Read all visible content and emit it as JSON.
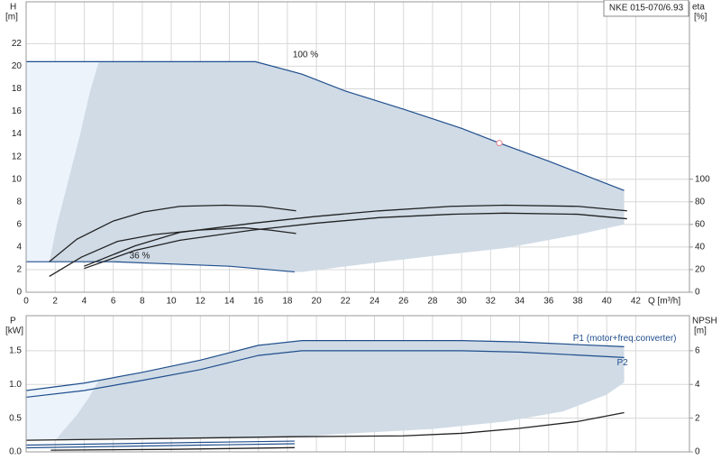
{
  "chart_data": [
    {
      "type": "line",
      "title": "NKE 015-070/6.93",
      "ylabel": "H",
      "yunit": "[m]",
      "y2label": "eta",
      "y2unit": "[%]",
      "xlabel": "Q [m³/h]",
      "xlim": [
        0,
        45.7
      ],
      "xticks": [
        0,
        2,
        4,
        6,
        8,
        10,
        12,
        14,
        16,
        18,
        20,
        22,
        24,
        26,
        28,
        30,
        32,
        34,
        36,
        38,
        40,
        42
      ],
      "ylim": [
        0,
        25.7
      ],
      "yticks": [
        0,
        2,
        4,
        6,
        8,
        10,
        12,
        14,
        16,
        18,
        20,
        22
      ],
      "y2lim": [
        0,
        257
      ],
      "y2ticks": [
        0,
        20,
        40,
        60,
        80,
        100
      ],
      "grid": true,
      "regions": [
        {
          "color": "#d0dbe6",
          "x": [
            5,
            15.8,
            19,
            22,
            26,
            30,
            32.6,
            36,
            41.2,
            41.2,
            38,
            33,
            28,
            24,
            19,
            18.5,
            14,
            10,
            6,
            1.6,
            2.1,
            2.9,
            3.7,
            4.4
          ],
          "values": [
            20.4,
            20.4,
            19.3,
            17.8,
            16.2,
            14.5,
            13.2,
            11.6,
            9,
            6,
            5.1,
            3.9,
            3.2,
            2.6,
            1.8,
            1.8,
            2.3,
            2.5,
            2.7,
            2.7,
            5.9,
            9.9,
            13.9,
            17.8
          ]
        },
        {
          "color": "#ecf3fb",
          "x": [
            0,
            5,
            4.4,
            3.7,
            2.9,
            2.1,
            1.6,
            0
          ],
          "values": [
            20.4,
            20.4,
            17.8,
            13.9,
            9.9,
            5.9,
            2.7,
            2.7
          ]
        }
      ],
      "series": [
        {
          "color": "#1f4e8c",
          "x": [
            0,
            5,
            15.8,
            19,
            22,
            26,
            30,
            32.6,
            36,
            41.2
          ],
          "values": [
            20.4,
            20.4,
            20.4,
            19.3,
            17.8,
            16.2,
            14.5,
            13.2,
            11.6,
            9
          ]
        },
        {
          "color": "#1f4e8c",
          "x": [
            0,
            6,
            10,
            14,
            18.5
          ],
          "values": [
            2.7,
            2.7,
            2.5,
            2.3,
            1.8
          ]
        },
        {
          "color": "#222222",
          "axis": "y2",
          "x": [
            1.6,
            3.5,
            6,
            8.1,
            10.6,
            13.7,
            16.2,
            18.6
          ],
          "values": [
            27,
            47,
            63,
            71,
            76,
            77,
            76,
            72
          ]
        },
        {
          "color": "#222222",
          "axis": "y2",
          "x": [
            1.6,
            3.8,
            6.3,
            8.8,
            11.9,
            15,
            16.8,
            18.6
          ],
          "values": [
            14,
            31,
            45,
            51,
            55,
            57,
            55,
            52
          ]
        },
        {
          "color": "#222222",
          "axis": "y2",
          "x": [
            4,
            7.5,
            10.6,
            15.6,
            19.9,
            24.3,
            29.3,
            33,
            38,
            41.4
          ],
          "values": [
            23,
            41,
            53,
            61,
            67,
            72,
            76,
            77,
            76,
            72
          ]
        },
        {
          "color": "#222222",
          "axis": "y2",
          "x": [
            4,
            7.5,
            10.6,
            15.6,
            19.9,
            24.3,
            29.3,
            33,
            38,
            41.4
          ],
          "values": [
            21,
            37,
            46,
            55,
            61,
            66,
            69,
            70,
            69,
            65
          ]
        }
      ],
      "point": {
        "x": 32.6,
        "y": 13.2,
        "color": "#e8808a"
      },
      "annotations": [
        "100 %",
        "36 %"
      ]
    },
    {
      "type": "line",
      "ylabel": "P",
      "yunit": "[kW]",
      "y2label": "NPSH",
      "y2unit": "[m]",
      "xlim": [
        0,
        45.7
      ],
      "ylim": [
        0,
        2.02
      ],
      "yticks": [
        {
          "value": 0,
          "label": "0.0"
        },
        0.5,
        {
          "value": 1,
          "label": "1.0"
        },
        1.5
      ],
      "y2lim": [
        0,
        8.08
      ],
      "y2ticks": [
        0,
        2,
        4,
        6
      ],
      "grid": true,
      "regions": [
        {
          "color": "#d0dbe6",
          "x": [
            5,
            8,
            12,
            16,
            19,
            30,
            34,
            41.2,
            41.2,
            40,
            37,
            33,
            28,
            22,
            18.5,
            12,
            6,
            2,
            2.5,
            3.5,
            4.3
          ],
          "values": [
            1.06,
            1.18,
            1.36,
            1.58,
            1.65,
            1.65,
            1.63,
            1.56,
            1.03,
            0.85,
            0.6,
            0.45,
            0.34,
            0.27,
            0.22,
            0.2,
            0.18,
            0.17,
            0.3,
            0.55,
            0.8
          ]
        },
        {
          "color": "#ecf3fb",
          "x": [
            0,
            4,
            5,
            4.3,
            3.5,
            2.5,
            2,
            0
          ],
          "values": [
            0.91,
            1.02,
            1.06,
            0.8,
            0.55,
            0.3,
            0.17,
            0.17
          ]
        }
      ],
      "series": [
        {
          "name": "P1 (motor+freq.converter)",
          "color": "#1f4e8c",
          "x": [
            0,
            4,
            8,
            12,
            16,
            19,
            30,
            34,
            41.2
          ],
          "values": [
            0.91,
            1.02,
            1.18,
            1.36,
            1.58,
            1.65,
            1.65,
            1.63,
            1.56
          ]
        },
        {
          "name": "P2",
          "color": "#1f4e8c",
          "x": [
            0,
            4,
            8,
            12,
            16,
            19,
            30,
            34,
            41.2
          ],
          "values": [
            0.81,
            0.91,
            1.06,
            1.22,
            1.43,
            1.5,
            1.5,
            1.48,
            1.4
          ]
        },
        {
          "color": "#1f4e8c",
          "x": [
            0,
            6,
            12,
            18.5
          ],
          "values": [
            0.1,
            0.12,
            0.14,
            0.16
          ]
        },
        {
          "color": "#1f4e8c",
          "x": [
            0,
            6,
            12,
            18.5
          ],
          "values": [
            0.06,
            0.08,
            0.1,
            0.12
          ]
        },
        {
          "color": "#222222",
          "axis": "y2",
          "x": [
            0,
            10,
            18.5,
            26,
            30,
            34,
            38,
            41.2
          ],
          "values": [
            0.69,
            0.8,
            0.9,
            0.95,
            1.1,
            1.4,
            1.8,
            2.33
          ]
        },
        {
          "color": "#222222",
          "axis": "y2",
          "x": [
            1.7,
            10,
            18.5
          ],
          "values": [
            0.1,
            0.15,
            0.25
          ]
        }
      ]
    }
  ]
}
